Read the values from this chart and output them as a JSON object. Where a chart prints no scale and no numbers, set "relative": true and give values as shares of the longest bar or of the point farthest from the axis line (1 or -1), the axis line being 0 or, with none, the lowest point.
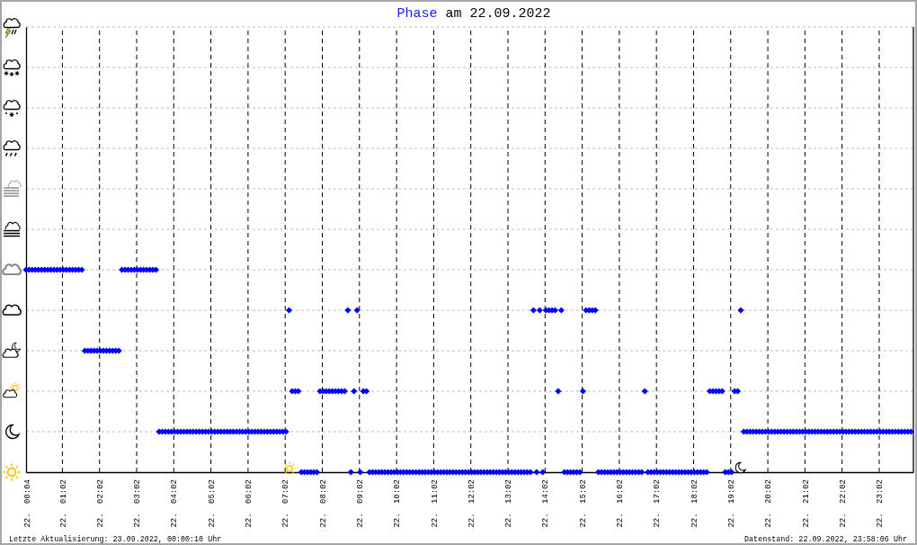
{
  "chart_data": {
    "type": "scatter",
    "title": "Phase am 22.09.2022",
    "relative": true,
    "x": [
      "2022-09-22T00:04",
      "2022-09-22T00:09",
      "2022-09-22T00:14",
      "2022-09-22T00:19",
      "2022-09-22T00:24",
      "2022-09-22T00:29",
      "2022-09-22T00:34",
      "2022-09-22T00:39",
      "2022-09-22T00:44",
      "2022-09-22T00:49",
      "2022-09-22T00:54",
      "2022-09-22T00:59",
      "2022-09-22T01:04",
      "2022-09-22T01:09",
      "2022-09-22T01:14",
      "2022-09-22T01:19",
      "2022-09-22T01:24",
      "2022-09-22T01:29",
      "2022-09-22T01:34",
      "2022-09-22T01:39",
      "2022-09-22T01:44",
      "2022-09-22T01:49",
      "2022-09-22T01:54",
      "2022-09-22T01:59",
      "2022-09-22T02:04",
      "2022-09-22T02:09",
      "2022-09-22T02:14",
      "2022-09-22T02:19",
      "2022-09-22T02:24",
      "2022-09-22T02:29",
      "2022-09-22T02:34",
      "2022-09-22T02:39",
      "2022-09-22T02:44",
      "2022-09-22T02:49",
      "2022-09-22T02:54",
      "2022-09-22T02:59",
      "2022-09-22T03:04",
      "2022-09-22T03:09",
      "2022-09-22T03:14",
      "2022-09-22T03:19",
      "2022-09-22T03:24",
      "2022-09-22T03:29",
      "2022-09-22T03:34",
      "2022-09-22T03:39",
      "2022-09-22T03:44",
      "2022-09-22T03:49",
      "2022-09-22T03:54",
      "2022-09-22T03:59",
      "2022-09-22T04:04",
      "2022-09-22T04:09",
      "2022-09-22T04:14",
      "2022-09-22T04:19",
      "2022-09-22T04:24",
      "2022-09-22T04:29",
      "2022-09-22T04:34",
      "2022-09-22T04:39",
      "2022-09-22T04:44",
      "2022-09-22T04:49",
      "2022-09-22T04:54",
      "2022-09-22T04:59",
      "2022-09-22T05:04",
      "2022-09-22T05:09",
      "2022-09-22T05:14",
      "2022-09-22T05:19",
      "2022-09-22T05:24",
      "2022-09-22T05:29",
      "2022-09-22T05:34",
      "2022-09-22T05:39",
      "2022-09-22T05:44",
      "2022-09-22T05:49",
      "2022-09-22T05:54",
      "2022-09-22T05:59",
      "2022-09-22T06:04",
      "2022-09-22T06:09",
      "2022-09-22T06:14",
      "2022-09-22T06:19",
      "2022-09-22T06:24",
      "2022-09-22T06:29",
      "2022-09-22T06:34",
      "2022-09-22T06:39",
      "2022-09-22T06:44",
      "2022-09-22T06:49",
      "2022-09-22T06:54",
      "2022-09-22T06:59",
      "2022-09-22T07:04",
      "2022-09-22T07:09",
      "2022-09-22T07:14",
      "2022-09-22T07:19",
      "2022-09-22T07:24",
      "2022-09-22T07:29",
      "2022-09-22T07:34",
      "2022-09-22T07:39",
      "2022-09-22T07:44",
      "2022-09-22T07:49",
      "2022-09-22T07:54",
      "2022-09-22T07:59",
      "2022-09-22T08:04",
      "2022-09-22T08:09",
      "2022-09-22T08:14",
      "2022-09-22T08:19",
      "2022-09-22T08:24",
      "2022-09-22T08:29",
      "2022-09-22T08:34",
      "2022-09-22T08:39",
      "2022-09-22T08:44",
      "2022-09-22T08:49",
      "2022-09-22T08:54",
      "2022-09-22T08:59",
      "2022-09-22T09:04",
      "2022-09-22T09:09",
      "2022-09-22T09:14",
      "2022-09-22T09:19",
      "2022-09-22T09:24",
      "2022-09-22T09:29",
      "2022-09-22T09:34",
      "2022-09-22T09:39",
      "2022-09-22T09:44",
      "2022-09-22T09:49",
      "2022-09-22T09:54",
      "2022-09-22T09:59",
      "2022-09-22T10:04",
      "2022-09-22T10:09",
      "2022-09-22T10:14",
      "2022-09-22T10:19",
      "2022-09-22T10:24",
      "2022-09-22T10:29",
      "2022-09-22T10:34",
      "2022-09-22T10:39",
      "2022-09-22T10:44",
      "2022-09-22T10:49",
      "2022-09-22T10:54",
      "2022-09-22T10:59",
      "2022-09-22T11:04",
      "2022-09-22T11:09",
      "2022-09-22T11:14",
      "2022-09-22T11:19",
      "2022-09-22T11:24",
      "2022-09-22T11:29",
      "2022-09-22T11:34",
      "2022-09-22T11:39",
      "2022-09-22T11:44",
      "2022-09-22T11:49",
      "2022-09-22T11:54",
      "2022-09-22T11:59",
      "2022-09-22T12:04",
      "2022-09-22T12:09",
      "2022-09-22T12:14",
      "2022-09-22T12:19",
      "2022-09-22T12:24",
      "2022-09-22T12:29",
      "2022-09-22T12:34",
      "2022-09-22T12:39",
      "2022-09-22T12:44",
      "2022-09-22T12:49",
      "2022-09-22T12:54",
      "2022-09-22T12:59",
      "2022-09-22T13:04",
      "2022-09-22T13:09",
      "2022-09-22T13:14",
      "2022-09-22T13:19",
      "2022-09-22T13:24",
      "2022-09-22T13:29",
      "2022-09-22T13:34",
      "2022-09-22T13:39",
      "2022-09-22T13:44",
      "2022-09-22T13:49",
      "2022-09-22T13:54",
      "2022-09-22T13:59",
      "2022-09-22T14:04",
      "2022-09-22T14:09",
      "2022-09-22T14:14",
      "2022-09-22T14:19",
      "2022-09-22T14:24",
      "2022-09-22T14:29",
      "2022-09-22T14:34",
      "2022-09-22T14:39",
      "2022-09-22T14:44",
      "2022-09-22T14:49",
      "2022-09-22T14:54",
      "2022-09-22T14:59",
      "2022-09-22T15:04",
      "2022-09-22T15:09",
      "2022-09-22T15:14",
      "2022-09-22T15:19",
      "2022-09-22T15:24",
      "2022-09-22T15:29",
      "2022-09-22T15:34",
      "2022-09-22T15:39",
      "2022-09-22T15:44",
      "2022-09-22T15:49",
      "2022-09-22T15:54",
      "2022-09-22T15:59",
      "2022-09-22T16:04",
      "2022-09-22T16:09",
      "2022-09-22T16:14",
      "2022-09-22T16:19",
      "2022-09-22T16:24",
      "2022-09-22T16:29",
      "2022-09-22T16:34",
      "2022-09-22T16:39",
      "2022-09-22T16:44",
      "2022-09-22T16:49",
      "2022-09-22T16:54",
      "2022-09-22T16:59",
      "2022-09-22T17:04",
      "2022-09-22T17:09",
      "2022-09-22T17:14",
      "2022-09-22T17:19",
      "2022-09-22T17:24",
      "2022-09-22T17:29",
      "2022-09-22T17:34",
      "2022-09-22T17:39",
      "2022-09-22T17:44",
      "2022-09-22T17:49",
      "2022-09-22T17:54",
      "2022-09-22T17:59",
      "2022-09-22T18:04",
      "2022-09-22T18:09",
      "2022-09-22T18:14",
      "2022-09-22T18:19",
      "2022-09-22T18:24",
      "2022-09-22T18:29",
      "2022-09-22T18:34",
      "2022-09-22T18:39",
      "2022-09-22T18:44",
      "2022-09-22T18:49",
      "2022-09-22T18:54",
      "2022-09-22T18:59",
      "2022-09-22T19:04",
      "2022-09-22T19:09",
      "2022-09-22T19:14",
      "2022-09-22T19:19",
      "2022-09-22T19:24",
      "2022-09-22T19:29",
      "2022-09-22T19:34",
      "2022-09-22T19:39",
      "2022-09-22T19:44",
      "2022-09-22T19:49",
      "2022-09-22T19:54",
      "2022-09-22T19:59",
      "2022-09-22T20:04",
      "2022-09-22T20:09",
      "2022-09-22T20:14",
      "2022-09-22T20:19",
      "2022-09-22T20:24",
      "2022-09-22T20:29",
      "2022-09-22T20:34",
      "2022-09-22T20:39",
      "2022-09-22T20:44",
      "2022-09-22T20:49",
      "2022-09-22T20:54",
      "2022-09-22T20:59",
      "2022-09-22T21:04",
      "2022-09-22T21:09",
      "2022-09-22T21:14",
      "2022-09-22T21:19",
      "2022-09-22T21:24",
      "2022-09-22T21:29",
      "2022-09-22T21:34",
      "2022-09-22T21:39",
      "2022-09-22T21:44",
      "2022-09-22T21:49",
      "2022-09-22T21:54",
      "2022-09-22T21:59",
      "2022-09-22T22:04",
      "2022-09-22T22:09",
      "2022-09-22T22:14",
      "2022-09-22T22:19",
      "2022-09-22T22:24",
      "2022-09-22T22:29",
      "2022-09-22T22:34",
      "2022-09-22T22:39",
      "2022-09-22T22:44",
      "2022-09-22T22:49",
      "2022-09-22T22:54",
      "2022-09-22T22:59",
      "2022-09-22T23:04",
      "2022-09-22T23:09",
      "2022-09-22T23:14",
      "2022-09-22T23:19",
      "2022-09-22T23:24",
      "2022-09-22T23:29",
      "2022-09-22T23:34",
      "2022-09-22T23:39",
      "2022-09-22T23:44",
      "2022-09-22T23:49",
      "2022-09-22T23:54"
    ],
    "values": [
      1,
      1,
      1,
      1,
      1,
      1,
      1,
      1,
      1,
      1,
      1,
      1,
      1,
      1,
      1,
      1,
      1,
      1,
      1,
      0.6,
      0.6,
      0.6,
      0.6,
      0.6,
      0.6,
      0.6,
      0.6,
      0.6,
      0.6,
      0.6,
      0.6,
      1,
      1,
      1,
      1,
      1,
      1,
      1,
      1,
      1,
      1,
      1,
      1,
      0.2,
      0.2,
      0.2,
      0.2,
      0.2,
      0.2,
      0.2,
      0.2,
      0.2,
      0.2,
      0.2,
      0.2,
      0.2,
      0.2,
      0.2,
      0.2,
      0.2,
      0.2,
      0.2,
      0.2,
      0.2,
      0.2,
      0.2,
      0.2,
      0.2,
      0.2,
      0.2,
      0.2,
      0.2,
      0.2,
      0.2,
      0.2,
      0.2,
      0.2,
      0.2,
      0.2,
      0.2,
      0.2,
      0.2,
      0.2,
      0.2,
      0.2,
      0.8,
      0.4,
      0.4,
      0.4,
      0,
      0,
      0,
      0,
      0,
      0,
      0.4,
      0.4,
      0.4,
      0.4,
      0.4,
      0.4,
      0.4,
      0.4,
      0.4,
      0.8,
      0,
      0.4,
      0.8,
      0,
      0.4,
      0.4,
      0,
      0,
      0,
      0,
      0,
      0,
      0,
      0,
      0,
      0,
      0,
      0,
      0,
      0,
      0,
      0,
      0,
      0,
      0,
      0,
      0,
      0,
      0,
      0,
      0,
      0,
      0,
      0,
      0,
      0,
      0,
      0,
      0,
      0,
      0,
      0,
      0,
      0,
      0,
      0,
      0,
      0,
      0,
      0,
      0,
      0,
      0,
      0,
      0,
      0,
      0,
      0,
      0,
      0.8,
      0,
      0.8,
      0,
      0.8,
      0.8,
      0.8,
      0.8,
      0.4,
      0.8,
      0,
      0,
      0,
      0,
      0,
      0,
      0.4,
      0.8,
      0.8,
      0.8,
      0.8,
      0,
      0,
      0,
      0,
      0,
      0,
      0,
      0,
      0,
      0,
      0,
      0,
      0,
      0,
      0,
      0.4,
      0,
      0,
      0,
      0,
      0,
      0,
      0,
      0,
      0,
      0,
      0,
      0,
      0,
      0,
      0,
      0,
      0,
      0,
      0,
      0,
      0.4,
      0.4,
      0.4,
      0.4,
      0.4,
      0,
      0,
      0,
      0.4,
      0.4,
      0.8,
      0.2,
      0.2,
      0.2,
      0.2,
      0.2,
      0.2,
      0.2,
      0.2,
      0.2,
      0.2,
      0.2,
      0.2,
      0.2,
      0.2,
      0.2,
      0.2,
      0.2,
      0.2,
      0.2,
      0.2,
      0.2,
      0.2,
      0.2,
      0.2,
      0.2,
      0.2,
      0.2,
      0.2,
      0.2,
      0.2,
      0.2,
      0.2,
      0.2,
      0.2,
      0.2,
      0.2,
      0.2,
      0.2,
      0.2,
      0.2,
      0.2,
      0.2,
      0.2,
      0.2,
      0.2,
      0.2,
      0.2,
      0.2,
      0.2,
      0.2,
      0.2,
      0.2,
      0.2,
      0.2,
      0.2
    ],
    "color": "#0000ff",
    "marker": "diamond",
    "xlim": [
      "2022-09-22T00:04",
      "2022-09-22T23:58"
    ],
    "xticks": [
      {
        "value": "2022-09-22T00:04",
        "label": "22. 00:04"
      },
      {
        "value": "2022-09-22T01:02",
        "label": "22. 01:02"
      },
      {
        "value": "2022-09-22T02:02",
        "label": "22. 02:02"
      },
      {
        "value": "2022-09-22T03:02",
        "label": "22. 03:02"
      },
      {
        "value": "2022-09-22T04:02",
        "label": "22. 04:02"
      },
      {
        "value": "2022-09-22T05:02",
        "label": "22. 05:02"
      },
      {
        "value": "2022-09-22T06:02",
        "label": "22. 06:02"
      },
      {
        "value": "2022-09-22T07:02",
        "label": "22. 07:02"
      },
      {
        "value": "2022-09-22T08:02",
        "label": "22. 08:02"
      },
      {
        "value": "2022-09-22T09:02",
        "label": "22. 09:02"
      },
      {
        "value": "2022-09-22T10:02",
        "label": "22. 10:02"
      },
      {
        "value": "2022-09-22T11:02",
        "label": "22. 11:02"
      },
      {
        "value": "2022-09-22T12:02",
        "label": "22. 12:02"
      },
      {
        "value": "2022-09-22T13:02",
        "label": "22. 13:02"
      },
      {
        "value": "2022-09-22T14:02",
        "label": "22. 14:02"
      },
      {
        "value": "2022-09-22T15:02",
        "label": "22. 15:02"
      },
      {
        "value": "2022-09-22T16:02",
        "label": "22. 16:02"
      },
      {
        "value": "2022-09-22T17:02",
        "label": "22. 17:02"
      },
      {
        "value": "2022-09-22T18:02",
        "label": "22. 18:02"
      },
      {
        "value": "2022-09-22T19:02",
        "label": "22. 19:02"
      },
      {
        "value": "2022-09-22T20:02",
        "label": "22. 20:02"
      },
      {
        "value": "2022-09-22T21:02",
        "label": "22. 21:02"
      },
      {
        "value": "2022-09-22T22:02",
        "label": "22. 22:02"
      },
      {
        "value": "2022-09-22T23:02",
        "label": "22. 23:02"
      }
    ],
    "ref_lines": [
      {
        "axis": "y",
        "value": 0.2,
        "color": "#bdbdbd",
        "line_style": "dashed"
      },
      {
        "axis": "y",
        "value": 0.4,
        "color": "#bdbdbd",
        "line_style": "dashed"
      },
      {
        "axis": "y",
        "value": 0.6,
        "color": "#bdbdbd",
        "line_style": "dashed"
      },
      {
        "axis": "y",
        "value": 0.8,
        "color": "#bdbdbd",
        "line_style": "dashed"
      },
      {
        "axis": "y",
        "value": 1,
        "color": "#bdbdbd",
        "line_style": "dashed"
      },
      {
        "axis": "y",
        "value": 1.2,
        "color": "#bdbdbd",
        "line_style": "dashed"
      },
      {
        "axis": "y",
        "value": 1.4,
        "color": "#bdbdbd",
        "line_style": "dashed"
      },
      {
        "axis": "y",
        "value": 1.6,
        "color": "#bdbdbd",
        "line_style": "dashed"
      },
      {
        "axis": "y",
        "value": 1.8,
        "color": "#bdbdbd",
        "line_style": "dashed"
      },
      {
        "axis": "y",
        "value": 2,
        "color": "#bdbdbd",
        "line_style": "dashed"
      },
      {
        "axis": "y",
        "value": 2.2,
        "color": "#bdbdbd",
        "line_style": "dashed"
      }
    ],
    "grid": "x",
    "annotations": [
      "Letzte Aktualisierung: 23.09.2022, 00:00:10 Uhr",
      "Datenstand: 22.09.2022, 23:58:06 Uhr"
    ]
  }
}
